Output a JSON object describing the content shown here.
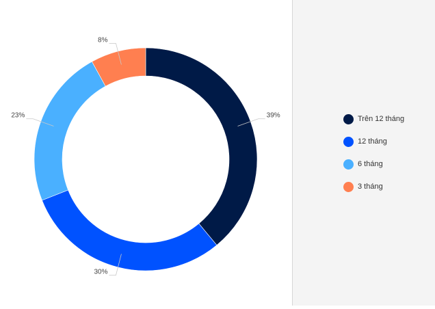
{
  "chart_data": {
    "type": "pie",
    "donut": true,
    "categories": [
      "Trên 12 tháng",
      "12 tháng",
      "6 tháng",
      "3 tháng"
    ],
    "values": [
      39,
      30,
      23,
      8
    ],
    "data_labels": [
      "39%",
      "30%",
      "23%",
      "8%"
    ],
    "colors": [
      "#001a47",
      "#0052ff",
      "#4ab0ff",
      "#ff7f50"
    ],
    "legend_position": "right"
  },
  "legend": {
    "items": [
      {
        "label": "Trên 12 tháng",
        "color": "#001a47",
        "icon": "circle-marker-icon"
      },
      {
        "label": "12 tháng",
        "color": "#0052ff",
        "icon": "circle-marker-icon"
      },
      {
        "label": "6 tháng",
        "color": "#4ab0ff",
        "icon": "circle-marker-icon"
      },
      {
        "label": "3 tháng",
        "color": "#ff7f50",
        "icon": "circle-marker-icon"
      }
    ]
  }
}
